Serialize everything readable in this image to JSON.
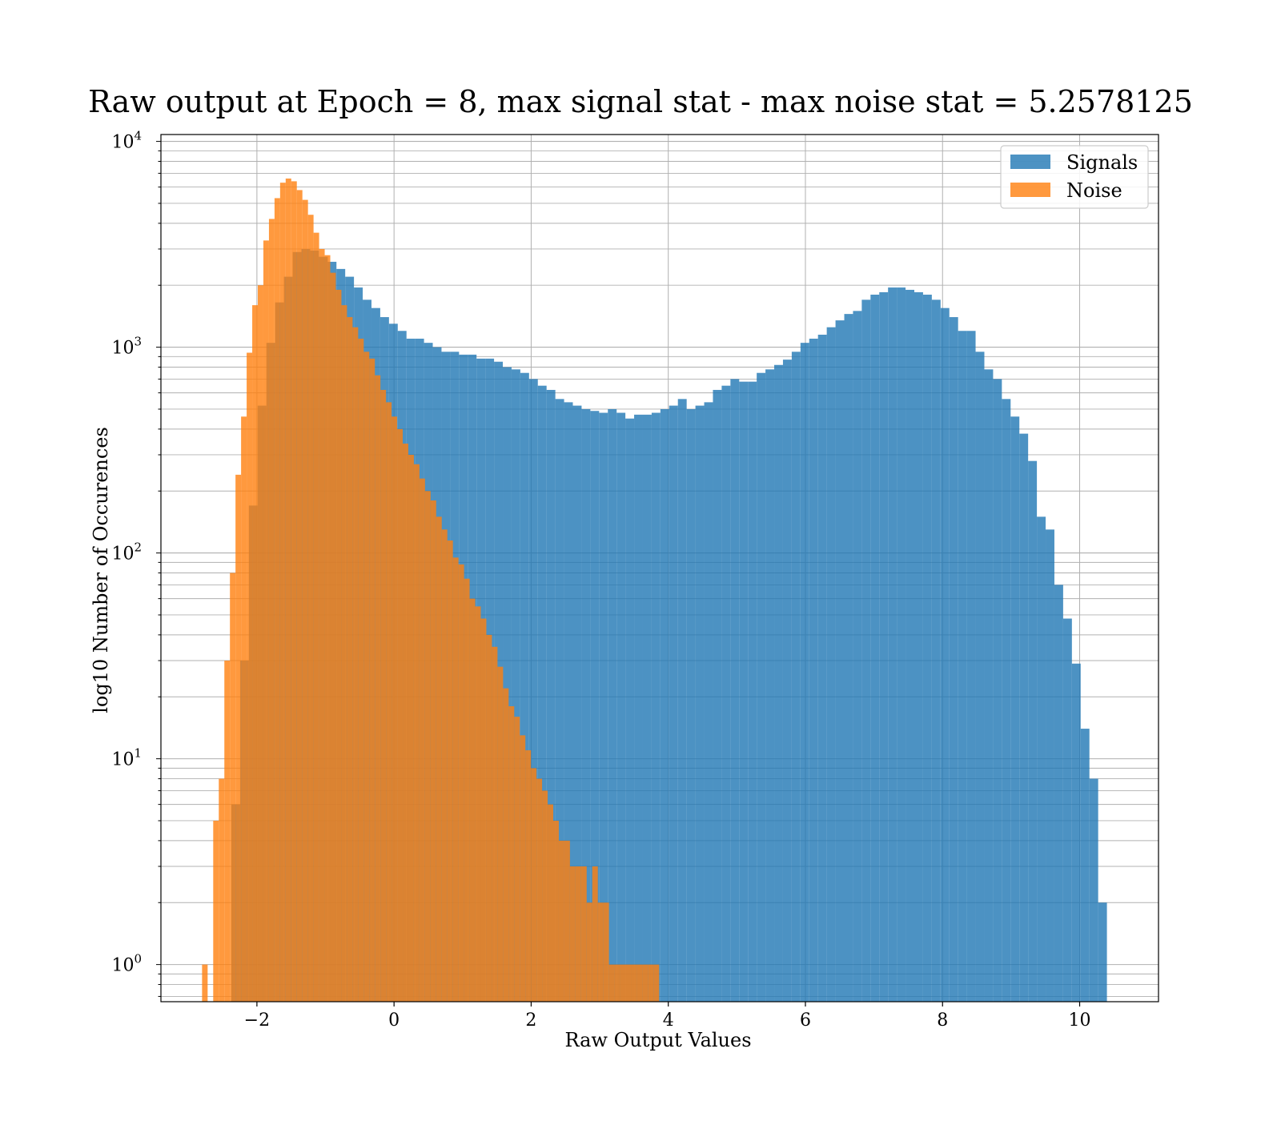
{
  "chart_data": {
    "type": "bar",
    "subtype": "histogram",
    "title": "Raw output at Epoch = 8, max signal stat - max noise stat = 5.2578125",
    "xlabel": "Raw Output Values",
    "ylabel": "log10 Number of Occurences",
    "xlim": [
      -3.4,
      11.15
    ],
    "ylim": [
      0.66,
      10800
    ],
    "y_scale": "log",
    "grid": "major and minor",
    "legend_position": "top-right",
    "x_ticks": [
      -2,
      0,
      2,
      4,
      6,
      8,
      10
    ],
    "x_tick_labels": [
      "−2",
      "0",
      "2",
      "4",
      "6",
      "8",
      "10"
    ],
    "y_ticks": [
      {
        "value": 1,
        "base": "10",
        "exp": "0"
      },
      {
        "value": 10,
        "base": "10",
        "exp": "1"
      },
      {
        "value": 100,
        "base": "10",
        "exp": "2"
      },
      {
        "value": 1000,
        "base": "10",
        "exp": "3"
      },
      {
        "value": 10000,
        "base": "10",
        "exp": "4"
      }
    ],
    "series": [
      {
        "name": "Signals",
        "color": "#1f77b4",
        "bin_start": -2.5,
        "bin_width": 0.1277,
        "counts": [
          0,
          6,
          30,
          170,
          520,
          1050,
          1650,
          2200,
          2900,
          3000,
          2950,
          2750,
          2600,
          2400,
          2200,
          1950,
          1700,
          1550,
          1400,
          1300,
          1200,
          1100,
          1100,
          1050,
          1000,
          950,
          950,
          920,
          920,
          880,
          880,
          850,
          800,
          780,
          750,
          700,
          650,
          620,
          560,
          540,
          520,
          500,
          490,
          480,
          500,
          480,
          450,
          470,
          470,
          480,
          500,
          520,
          560,
          500,
          520,
          540,
          620,
          650,
          700,
          680,
          680,
          750,
          780,
          820,
          870,
          950,
          1050,
          1100,
          1150,
          1250,
          1350,
          1450,
          1500,
          1700,
          1800,
          1850,
          1950,
          1950,
          1900,
          1850,
          1800,
          1700,
          1550,
          1400,
          1200,
          1200,
          950,
          780,
          700,
          560,
          460,
          380,
          280,
          150,
          130,
          70,
          48,
          29,
          14,
          8,
          2
        ]
      },
      {
        "name": "Noise",
        "color": "#ff7f0e",
        "bin_start": -2.8,
        "bin_width": 0.0813,
        "counts": [
          1,
          0,
          5,
          8,
          30,
          80,
          240,
          460,
          940,
          1600,
          2000,
          3300,
          4200,
          5300,
          6300,
          6600,
          6400,
          5800,
          5200,
          4400,
          3600,
          3000,
          2800,
          2300,
          1900,
          1600,
          1400,
          1250,
          1100,
          950,
          880,
          730,
          620,
          540,
          460,
          400,
          340,
          300,
          270,
          230,
          200,
          180,
          150,
          130,
          115,
          95,
          88,
          75,
          60,
          55,
          48,
          40,
          35,
          28,
          22,
          18,
          16,
          13,
          11,
          9,
          8,
          7,
          6,
          5,
          4,
          4,
          3,
          3,
          3,
          2,
          3,
          2,
          2,
          1,
          1,
          1,
          1,
          1,
          1,
          1,
          1,
          1
        ]
      }
    ]
  }
}
